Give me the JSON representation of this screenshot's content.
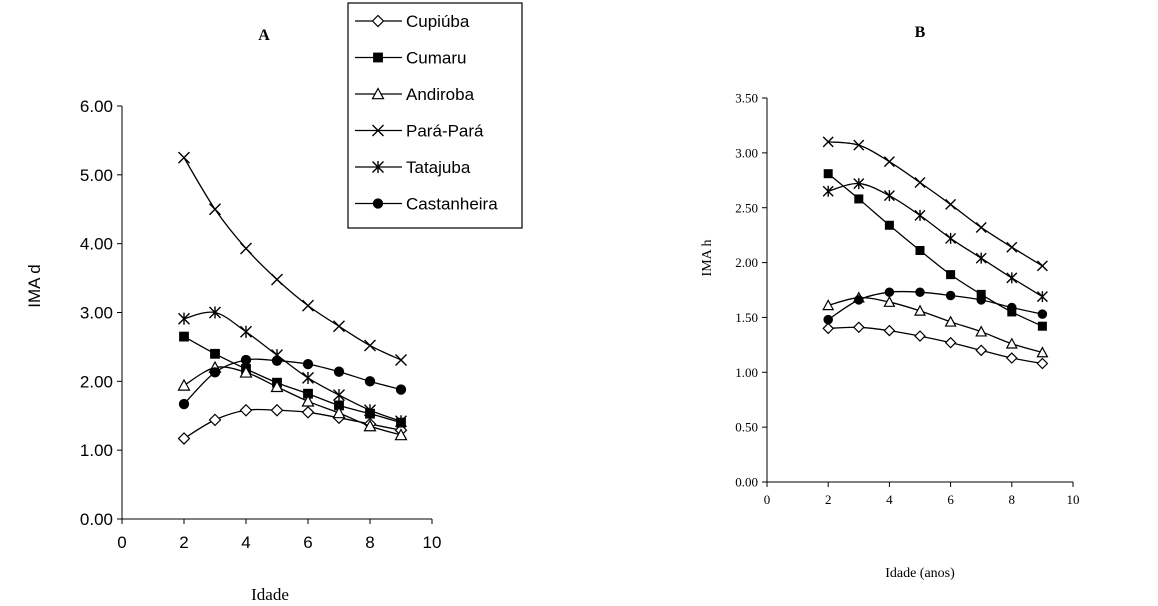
{
  "chart_data": [
    {
      "type": "line",
      "title": "A",
      "xlabel": "Idade",
      "ylabel": "IMA d",
      "xlim": [
        0,
        10
      ],
      "ylim": [
        0,
        6
      ],
      "xticks": [
        "0",
        "2",
        "4",
        "6",
        "8",
        "10"
      ],
      "yticks": [
        "0.00",
        "1.00",
        "2.00",
        "3.00",
        "4.00",
        "5.00",
        "6.00"
      ],
      "grid": false,
      "legend_position": "top-right",
      "x": [
        2,
        3,
        4,
        5,
        6,
        7,
        8,
        9
      ],
      "series": [
        {
          "name": "Cupiúba",
          "marker": "diamond-open",
          "values": [
            1.17,
            1.44,
            1.58,
            1.58,
            1.55,
            1.47,
            1.38,
            1.29
          ]
        },
        {
          "name": "Cumaru",
          "marker": "square-filled",
          "values": [
            2.65,
            2.4,
            2.18,
            1.98,
            1.82,
            1.65,
            1.53,
            1.4
          ]
        },
        {
          "name": "Andiroba",
          "marker": "triangle-open",
          "values": [
            1.94,
            2.2,
            2.13,
            1.92,
            1.71,
            1.54,
            1.35,
            1.22
          ]
        },
        {
          "name": "Pará-Pará",
          "marker": "x",
          "values": [
            5.25,
            4.5,
            3.93,
            3.48,
            3.1,
            2.8,
            2.52,
            2.31
          ]
        },
        {
          "name": "Tatajuba",
          "marker": "asterisk",
          "values": [
            2.91,
            3.0,
            2.72,
            2.38,
            2.05,
            1.8,
            1.58,
            1.42
          ]
        },
        {
          "name": "Castanheira",
          "marker": "circle-filled",
          "values": [
            1.67,
            2.13,
            2.31,
            2.3,
            2.25,
            2.14,
            2.0,
            1.88
          ]
        }
      ]
    },
    {
      "type": "line",
      "title": "B",
      "xlabel": "Idade (anos)",
      "ylabel": "IMA h",
      "xlim": [
        0,
        10
      ],
      "ylim": [
        0,
        3.5
      ],
      "xticks": [
        "0",
        "2",
        "4",
        "6",
        "8",
        "10"
      ],
      "yticks": [
        "0.00",
        "0.50",
        "1.00",
        "1.50",
        "2.00",
        "2.50",
        "3.00",
        "3.50"
      ],
      "grid": false,
      "x": [
        2,
        3,
        4,
        5,
        6,
        7,
        8,
        9
      ],
      "series": [
        {
          "name": "Cupiúba",
          "marker": "diamond-open",
          "values": [
            1.4,
            1.41,
            1.38,
            1.33,
            1.27,
            1.2,
            1.13,
            1.08
          ]
        },
        {
          "name": "Cumaru",
          "marker": "square-filled",
          "values": [
            2.81,
            2.58,
            2.34,
            2.11,
            1.89,
            1.71,
            1.55,
            1.42
          ]
        },
        {
          "name": "Andiroba",
          "marker": "triangle-open",
          "values": [
            1.61,
            1.68,
            1.64,
            1.56,
            1.46,
            1.37,
            1.26,
            1.18
          ]
        },
        {
          "name": "Pará-Pará",
          "marker": "x",
          "values": [
            3.1,
            3.07,
            2.92,
            2.73,
            2.53,
            2.32,
            2.14,
            1.97
          ]
        },
        {
          "name": "Tatajuba",
          "marker": "asterisk",
          "values": [
            2.65,
            2.72,
            2.61,
            2.43,
            2.22,
            2.04,
            1.86,
            1.69
          ]
        },
        {
          "name": "Castanheira",
          "marker": "circle-filled",
          "values": [
            1.48,
            1.66,
            1.73,
            1.73,
            1.7,
            1.66,
            1.59,
            1.53
          ]
        }
      ]
    }
  ]
}
